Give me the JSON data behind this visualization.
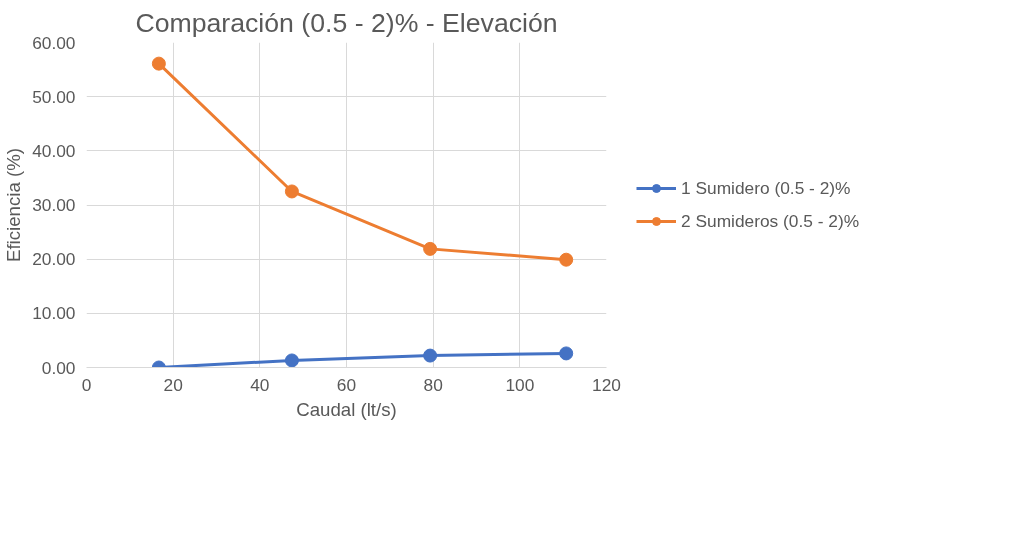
{
  "chart_data": {
    "type": "line",
    "title": "Comparación (0.5 - 2)% - Elevación",
    "xlabel": "Caudal (lt/s)",
    "ylabel": "Eficiencia (%)",
    "x": [
      16.7,
      47.4,
      79.3,
      110.7
    ],
    "series": [
      {
        "name": "1 Sumidero (0.5 - 2)%",
        "color": "#4472c4",
        "values": [
          0.0,
          1.3,
          2.2,
          2.6
        ]
      },
      {
        "name": "2 Sumideros (0.5 - 2)%",
        "color": "#ed7d31",
        "values": [
          56.1,
          32.5,
          21.9,
          19.9
        ]
      }
    ],
    "xlim": [
      0,
      120
    ],
    "xticks": [
      0,
      20,
      40,
      60,
      80,
      100,
      120
    ],
    "ylim": [
      0,
      60
    ],
    "yticks": [
      {
        "value": 0,
        "label": "0.00"
      },
      {
        "value": 10,
        "label": "10.00"
      },
      {
        "value": 20,
        "label": "20.00"
      },
      {
        "value": 30,
        "label": "30.00"
      },
      {
        "value": 40,
        "label": "40.00"
      },
      {
        "value": 50,
        "label": "50.00"
      },
      {
        "value": 60,
        "label": "60.00"
      }
    ],
    "grid": true,
    "legend": "right",
    "marker": "circle",
    "line_style": "solid"
  }
}
